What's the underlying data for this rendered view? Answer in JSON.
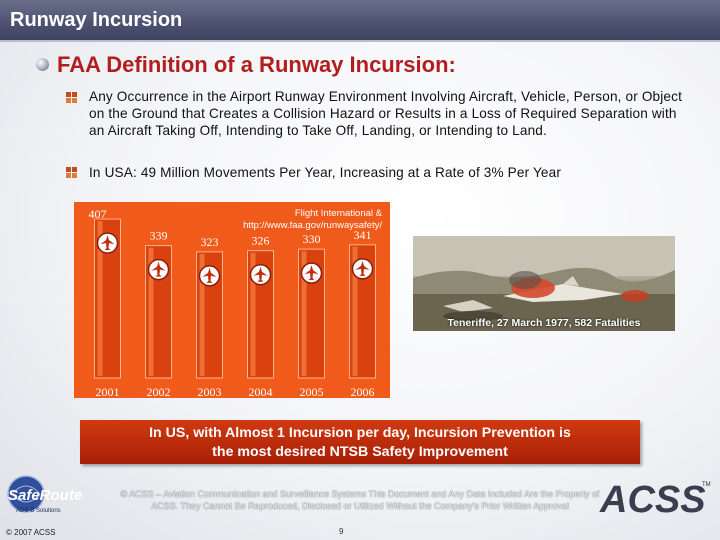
{
  "header": {
    "title": "Runway Incursion"
  },
  "section": {
    "heading": "FAA Definition of a Runway Incursion:"
  },
  "bullets": [
    {
      "text": "Any Occurrence in the Airport Runway Environment Involving Aircraft, Vehicle, Person, or Object on the Ground that Creates a Collision Hazard or Results in a Loss of Required Separation with an Aircraft Taking Off, Intending to Take Off, Landing, or Intending to Land."
    },
    {
      "text": "In USA: 49 Million Movements Per Year, Increasing at a Rate of 3% Per Year"
    }
  ],
  "chart_data": {
    "type": "bar",
    "categories": [
      "2001",
      "2002",
      "2003",
      "2004",
      "2005",
      "2006"
    ],
    "values": [
      407,
      339,
      323,
      326,
      330,
      341
    ],
    "value_labels": [
      "407",
      "339",
      "323",
      "326",
      "330",
      "341"
    ],
    "source": "Flight International & http://www.faa.gov/runwaysafety/",
    "bar_color": "#f05a1a",
    "background_color": "#f05a1a"
  },
  "photo": {
    "caption": "Teneriffe, 27 March 1977, 582 Fatalities"
  },
  "callout": {
    "line1": "In US, with Almost 1 Incursion per day, Incursion Prevention is",
    "line2": "the most desired NTSB Safety Improvement"
  },
  "footer": {
    "left_logo": "SafeRoute",
    "left_logo_sub": "ADS-B Solutions",
    "copyright_left": "© 2007 ACSS",
    "text": "© ACSS – Aviation Communication and Surveillance Systems This Document and Any Data Included Are the Property of ACSS. They Cannot Be Reproduced, Disclosed or Utilized Without the Company's Prior Written Approval",
    "page": "9",
    "right_logo": "ACSS",
    "right_logo_tm": "TM"
  },
  "colors": {
    "accent": "#b21e1e",
    "chart_orange": "#f05a1a",
    "callout_red": "#c22d0c"
  }
}
